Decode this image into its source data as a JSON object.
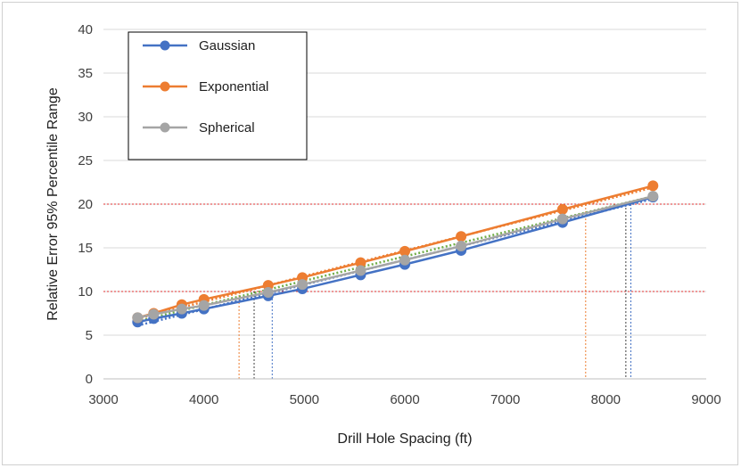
{
  "chart_data": {
    "type": "line",
    "title": "",
    "xlabel": "Drill Hole Spacing (ft)",
    "ylabel": "Relative Error 95% Percentile Range",
    "xlim": [
      3000,
      9000
    ],
    "ylim": [
      0,
      40
    ],
    "xticks": [
      "3000",
      "4000",
      "5000",
      "6000",
      "7000",
      "8000",
      "9000"
    ],
    "yticks": [
      "0",
      "5",
      "10",
      "15",
      "20",
      "25",
      "30",
      "35",
      "40"
    ],
    "grid": "horizontal",
    "legend_position": "top-left",
    "series": [
      {
        "name": "Gaussian",
        "color": "#4472C4",
        "x": [
          3340,
          3500,
          3780,
          4000,
          4640,
          4980,
          5560,
          6000,
          6560,
          7570,
          8470
        ],
        "y": [
          6.5,
          6.9,
          7.5,
          8.0,
          9.5,
          10.3,
          11.9,
          13.1,
          14.7,
          17.9,
          20.8
        ]
      },
      {
        "name": "Exponential",
        "color": "#ED7D31",
        "x": [
          3340,
          3500,
          3780,
          4000,
          4640,
          4980,
          5560,
          6000,
          6560,
          7570,
          8470
        ],
        "y": [
          7.0,
          7.5,
          8.5,
          9.1,
          10.7,
          11.6,
          13.3,
          14.6,
          16.3,
          19.4,
          22.1
        ]
      },
      {
        "name": "Spherical",
        "color": "#A5A5A5",
        "x": [
          3340,
          3500,
          3780,
          4000,
          4640,
          4980,
          5560,
          6000,
          6560,
          7570,
          8470
        ],
        "y": [
          7.0,
          7.4,
          8.0,
          8.4,
          9.9,
          10.8,
          12.4,
          13.6,
          15.2,
          18.3,
          20.9
        ]
      }
    ],
    "trendlines": [
      {
        "series": "Gaussian",
        "color": "#4472C4",
        "x": [
          3340,
          8470
        ],
        "y": [
          6.1,
          20.6
        ]
      },
      {
        "series": "Exponential",
        "color": "#ED7D31",
        "x": [
          3340,
          8470
        ],
        "y": [
          6.9,
          21.9
        ]
      },
      {
        "series": "Spherical",
        "color": "#70AD47",
        "x": [
          3340,
          8470
        ],
        "y": [
          6.6,
          20.9
        ]
      }
    ],
    "reference_lines_y": [
      {
        "y": 10,
        "color": "#E03030"
      },
      {
        "y": 20,
        "color": "#E03030"
      }
    ],
    "reference_lines_x": [
      {
        "x": 4350,
        "y": 10,
        "color": "#ED7D31"
      },
      {
        "x": 4500,
        "y": 10,
        "color": "#404040"
      },
      {
        "x": 4680,
        "y": 10,
        "color": "#4472C4"
      },
      {
        "x": 7800,
        "y": 20,
        "color": "#ED7D31"
      },
      {
        "x": 8200,
        "y": 20,
        "color": "#404040"
      },
      {
        "x": 8250,
        "y": 20,
        "color": "#4472C4"
      }
    ]
  }
}
